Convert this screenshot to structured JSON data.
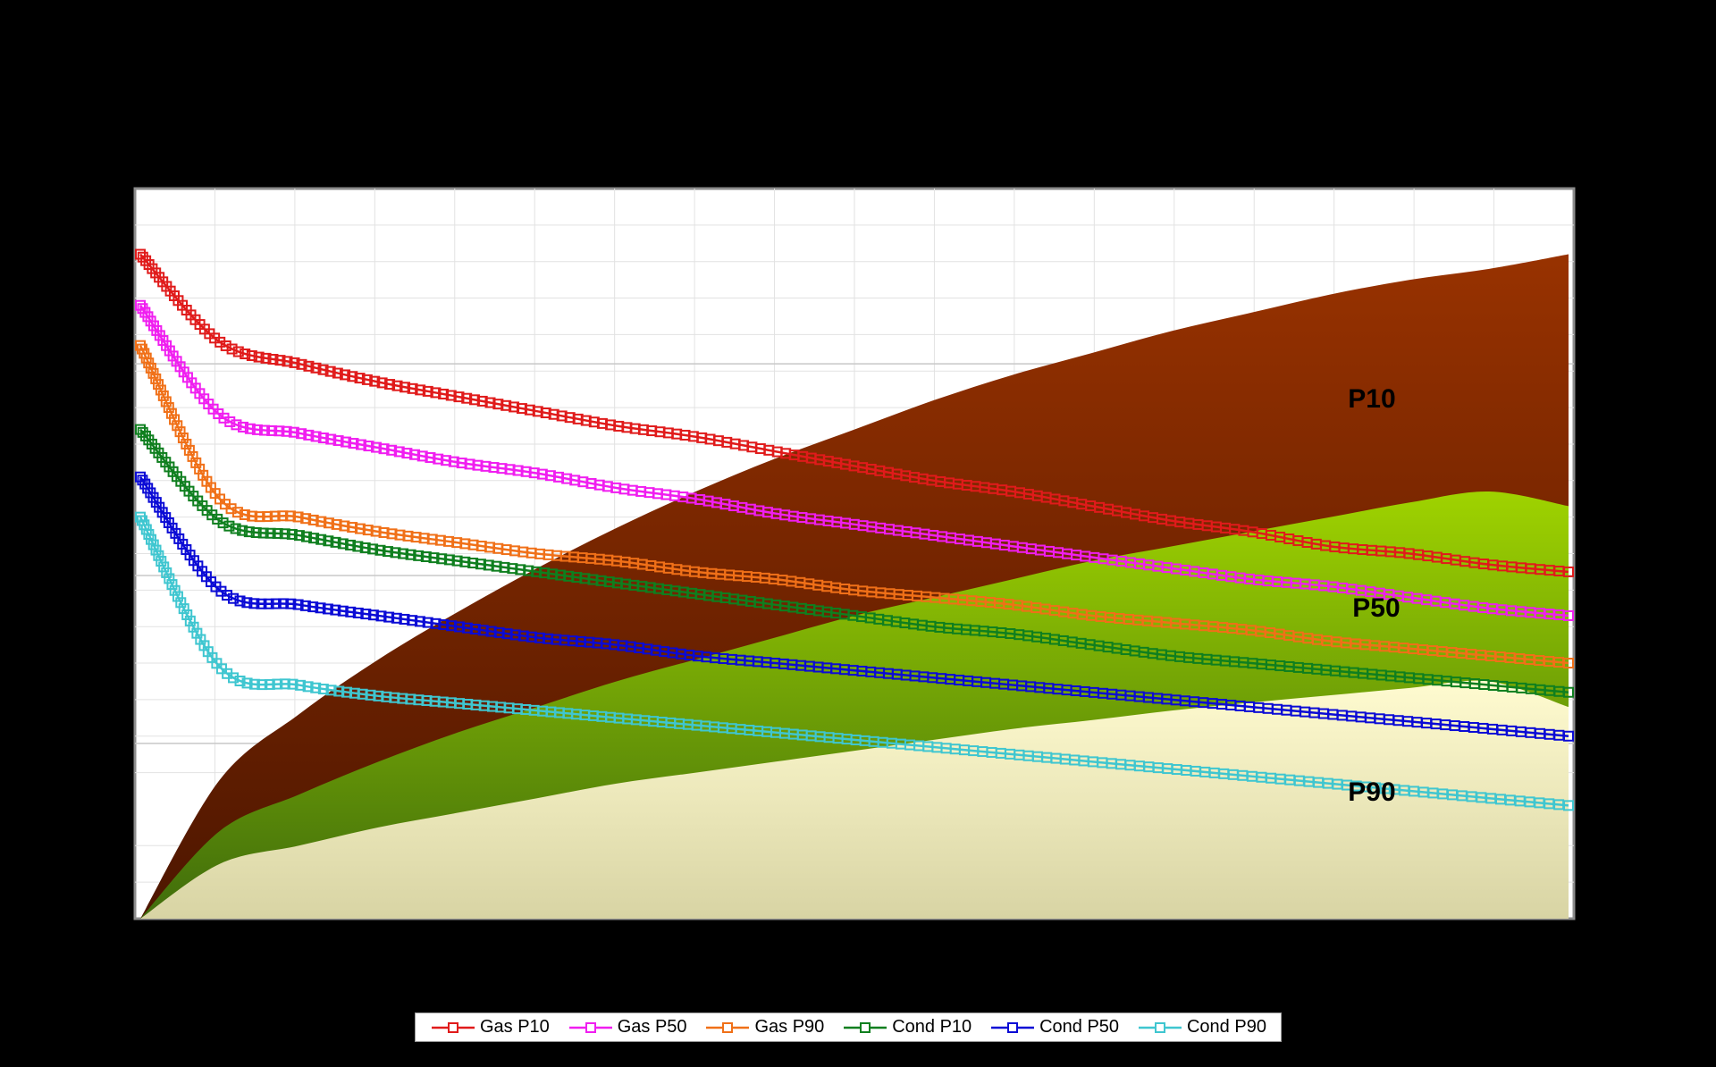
{
  "chart_data": {
    "type": "line",
    "title": "",
    "xlabel": "",
    "ylabel": "",
    "grid": true,
    "legend_position": "bottom",
    "x": [
      0,
      1,
      2,
      3,
      4,
      5,
      6,
      7,
      8,
      9,
      10,
      11,
      12,
      13,
      14,
      15,
      16,
      17,
      18
    ],
    "series": [
      {
        "name": "Gas P10",
        "color": "#e01b1b",
        "marker": "square",
        "levels": [
          0.91,
          0.79,
          0.76,
          0.735,
          0.715,
          0.695,
          0.675,
          0.66,
          0.64,
          0.62,
          0.6,
          0.585,
          0.565,
          0.545,
          0.53,
          0.51,
          0.5,
          0.485,
          0.475
        ]
      },
      {
        "name": "Gas P50",
        "color": "#f01ef0",
        "marker": "square",
        "levels": [
          0.84,
          0.69,
          0.665,
          0.645,
          0.625,
          0.61,
          0.59,
          0.575,
          0.555,
          0.54,
          0.525,
          0.51,
          0.495,
          0.48,
          0.465,
          0.455,
          0.44,
          0.425,
          0.415
        ]
      },
      {
        "name": "Gas P90",
        "color": "#f07018",
        "marker": "square",
        "levels": [
          0.785,
          0.575,
          0.55,
          0.53,
          0.515,
          0.5,
          0.49,
          0.475,
          0.465,
          0.45,
          0.44,
          0.43,
          0.415,
          0.405,
          0.395,
          0.38,
          0.37,
          0.36,
          0.35
        ]
      },
      {
        "name": "Cond P10",
        "color": "#0f7f1f",
        "marker": "square",
        "levels": [
          0.67,
          0.545,
          0.525,
          0.505,
          0.49,
          0.475,
          0.46,
          0.445,
          0.43,
          0.415,
          0.4,
          0.39,
          0.375,
          0.36,
          0.35,
          0.34,
          0.33,
          0.32,
          0.31
        ]
      },
      {
        "name": "Cond P50",
        "color": "#0b0bd5",
        "marker": "square",
        "levels": [
          0.605,
          0.45,
          0.43,
          0.415,
          0.4,
          0.385,
          0.375,
          0.36,
          0.35,
          0.34,
          0.33,
          0.32,
          0.31,
          0.3,
          0.29,
          0.28,
          0.27,
          0.26,
          0.25
        ]
      },
      {
        "name": "Cond P90",
        "color": "#3fc6d0",
        "marker": "square",
        "levels": [
          0.55,
          0.345,
          0.32,
          0.305,
          0.295,
          0.285,
          0.275,
          0.265,
          0.255,
          0.245,
          0.235,
          0.225,
          0.215,
          0.205,
          0.195,
          0.185,
          0.175,
          0.165,
          0.155
        ]
      }
    ],
    "areas": [
      {
        "label": "P10",
        "top": "#983200",
        "bottom": "#4d1600",
        "levels": [
          0,
          0.19,
          0.28,
          0.355,
          0.42,
          0.48,
          0.535,
          0.585,
          0.63,
          0.67,
          0.71,
          0.745,
          0.775,
          0.805,
          0.83,
          0.855,
          0.875,
          0.89,
          0.91
        ]
      },
      {
        "label": "P50",
        "top": "#9fd300",
        "bottom": "#3f6c0c",
        "levels": [
          0,
          0.12,
          0.17,
          0.215,
          0.255,
          0.29,
          0.325,
          0.355,
          0.385,
          0.415,
          0.44,
          0.465,
          0.49,
          0.51,
          0.53,
          0.55,
          0.57,
          0.585,
          0.565
        ]
      },
      {
        "label": "P90",
        "top": "#fffbd0",
        "bottom": "#d8d4a4",
        "levels": [
          0,
          0.075,
          0.1,
          0.125,
          0.145,
          0.165,
          0.185,
          0.2,
          0.215,
          0.23,
          0.245,
          0.26,
          0.272,
          0.285,
          0.296,
          0.306,
          0.316,
          0.325,
          0.29
        ]
      }
    ],
    "area_labels": [
      "P10",
      "P50",
      "P90"
    ]
  }
}
